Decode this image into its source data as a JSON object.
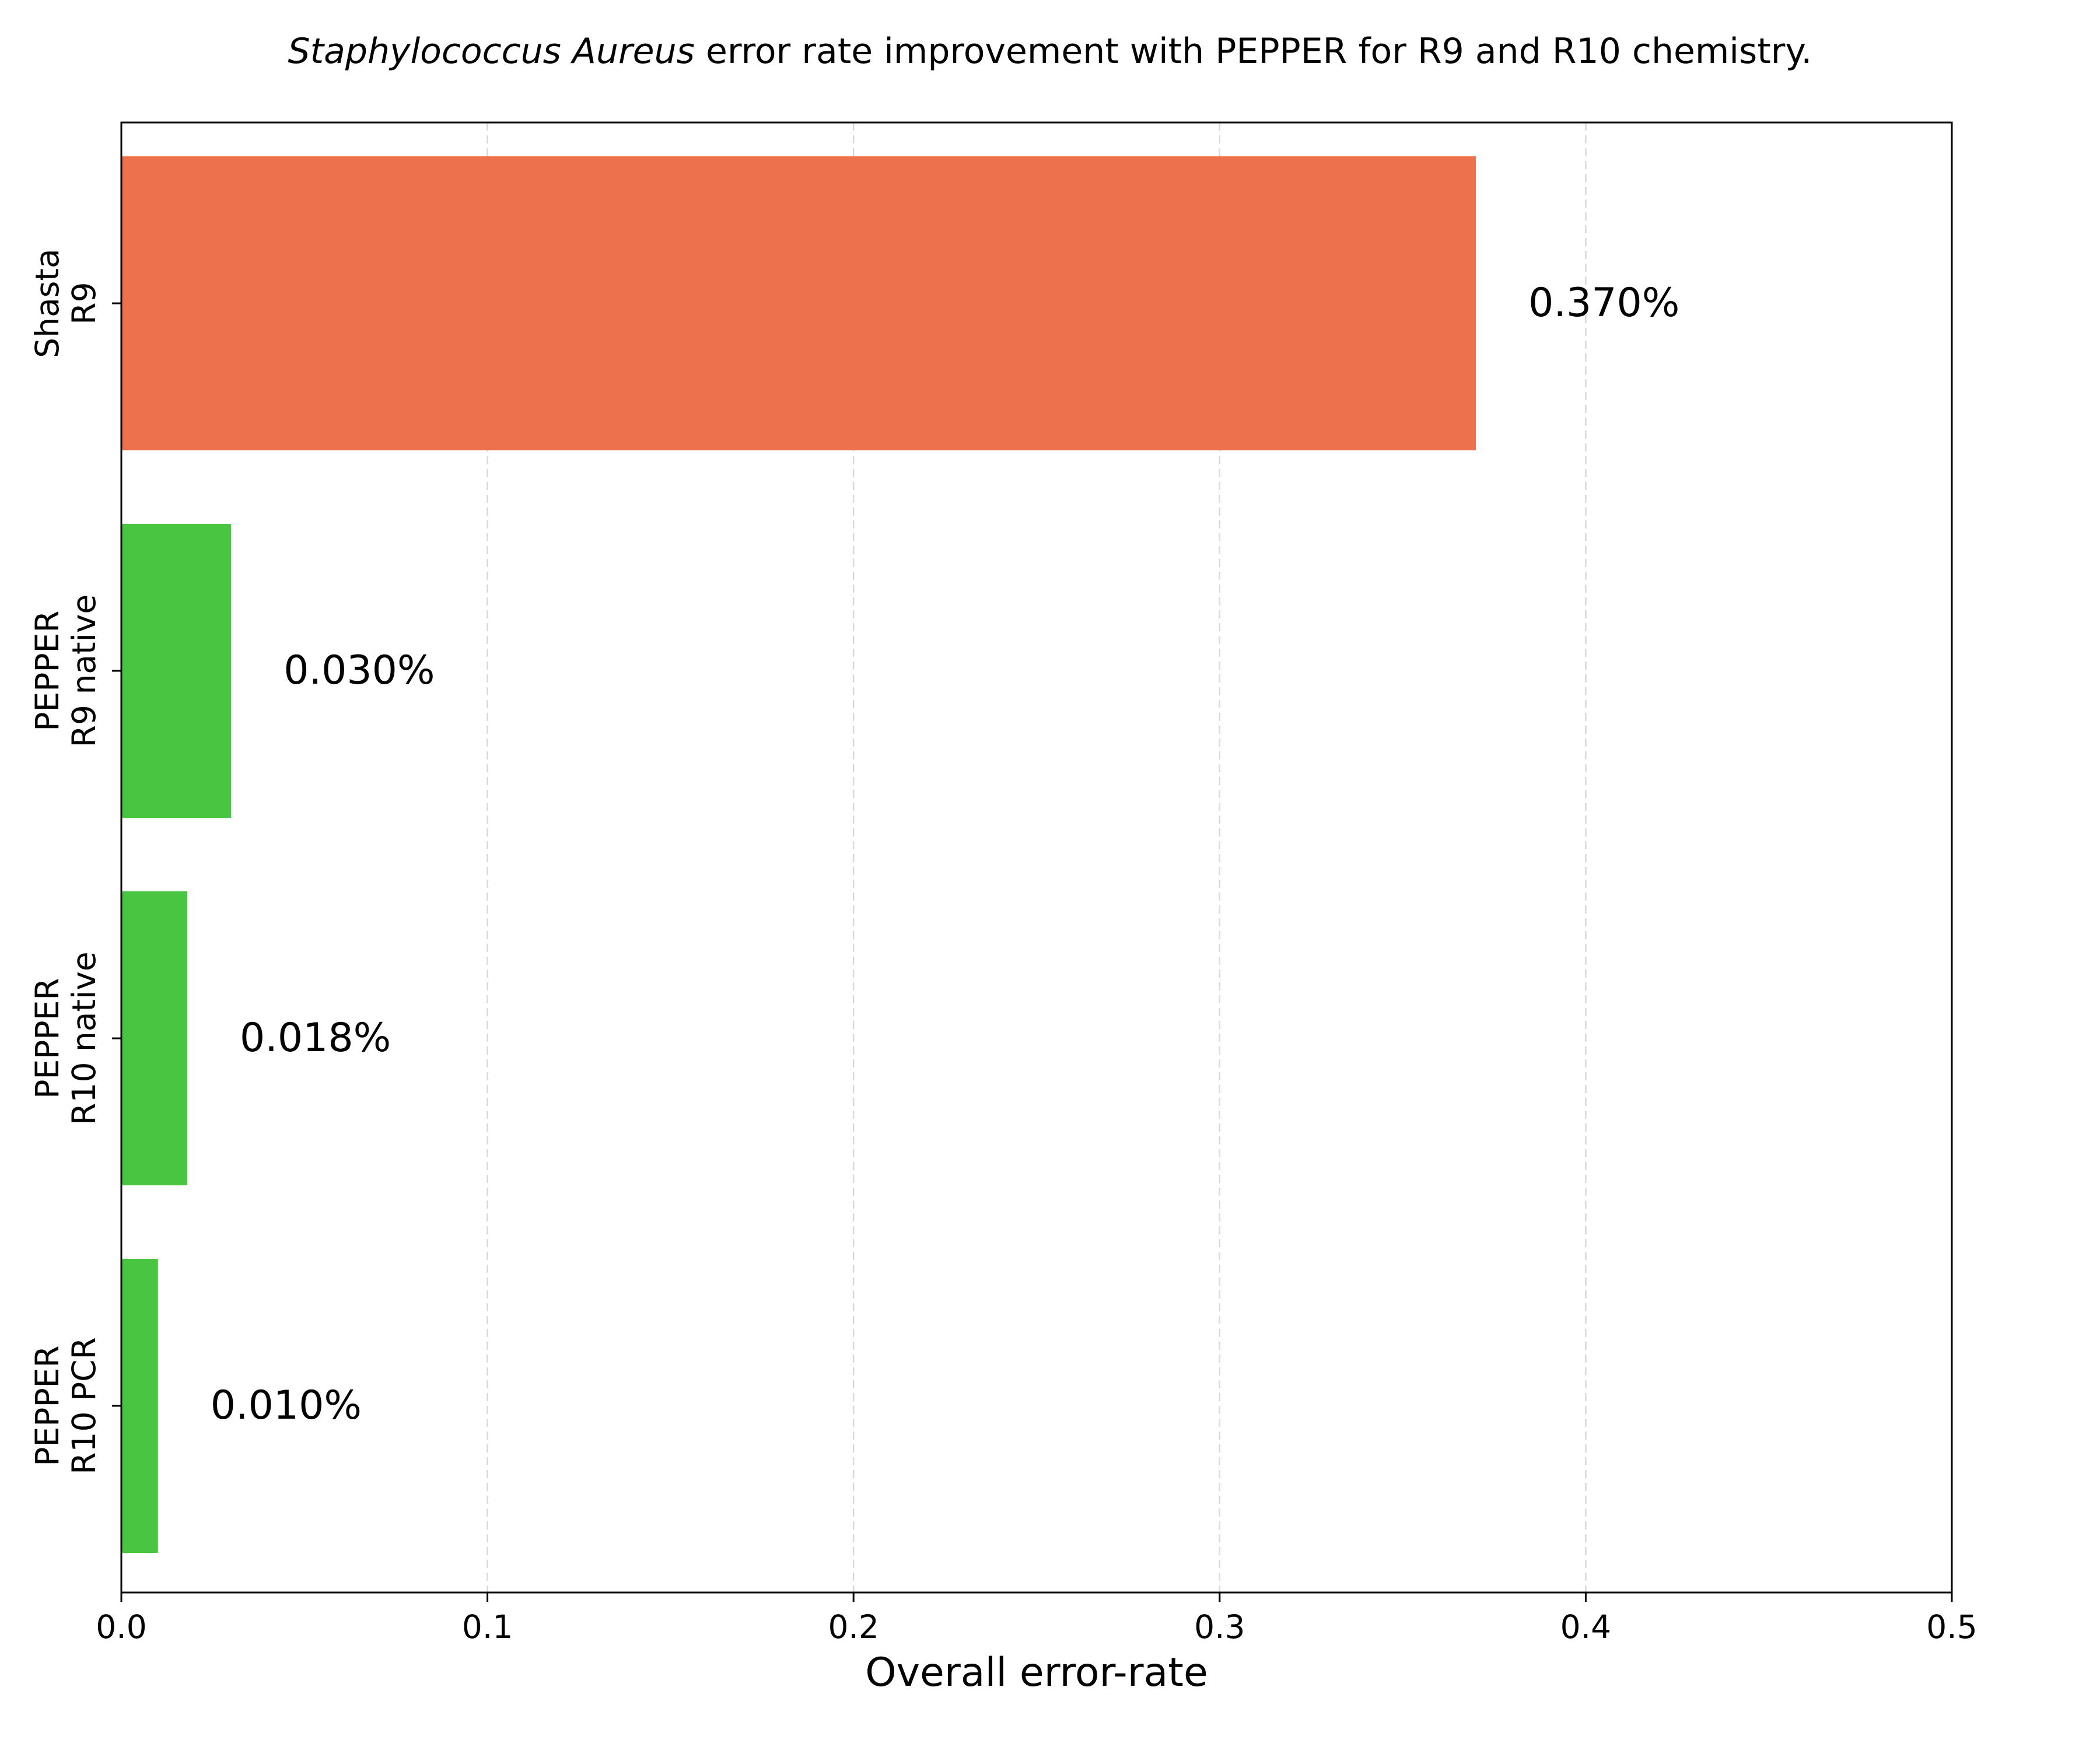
{
  "chart_data": {
    "type": "bar",
    "orientation": "horizontal",
    "title_italic": "Staphylococcus Aureus",
    "title_rest": " error rate improvement with PEPPER for R9 and R10 chemistry.",
    "xlabel": "Overall error-rate",
    "ylabel": "",
    "xlim": [
      0.0,
      0.5
    ],
    "xticks": [
      0.0,
      0.1,
      0.2,
      0.3,
      0.4,
      0.5
    ],
    "xtick_labels": [
      "0.0",
      "0.1",
      "0.2",
      "0.3",
      "0.4",
      "0.5"
    ],
    "grid": "x-dashed",
    "categories": [
      {
        "line1": "Shasta",
        "line2": "R9"
      },
      {
        "line1": "PEPPER",
        "line2": "R9 native"
      },
      {
        "line1": "PEPPER",
        "line2": "R10 native"
      },
      {
        "line1": "PEPPER",
        "line2": "R10 PCR"
      }
    ],
    "values": [
      0.37,
      0.03,
      0.018,
      0.01
    ],
    "value_labels": [
      "0.370%",
      "0.030%",
      "0.018%",
      "0.010%"
    ],
    "colors": [
      "#ee714d",
      "#4ac542",
      "#4ac542",
      "#4ac542"
    ]
  }
}
